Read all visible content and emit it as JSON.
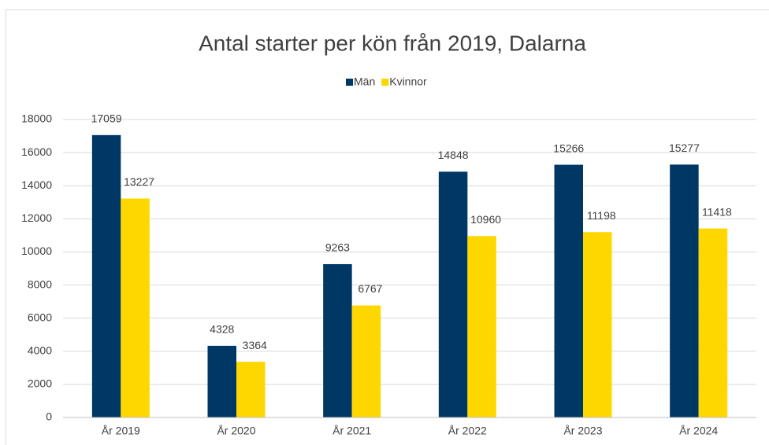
{
  "chart_data": {
    "type": "bar",
    "title": "Antal starter per kön från 2019, Dalarna",
    "categories": [
      "År 2019",
      "År 2020",
      "År 2021",
      "År 2022",
      "År 2023",
      "År 2024"
    ],
    "series": [
      {
        "name": "Män",
        "color": "#003865",
        "values": [
          17059,
          4328,
          9263,
          14848,
          15266,
          15277
        ]
      },
      {
        "name": "Kvinnor",
        "color": "#ffd700",
        "values": [
          13227,
          3364,
          6767,
          10960,
          11198,
          11418
        ]
      }
    ],
    "ylim": [
      0,
      18000
    ],
    "yticks": [
      0,
      2000,
      4000,
      6000,
      8000,
      10000,
      12000,
      14000,
      16000,
      18000
    ],
    "grid": true,
    "legend": "top"
  }
}
